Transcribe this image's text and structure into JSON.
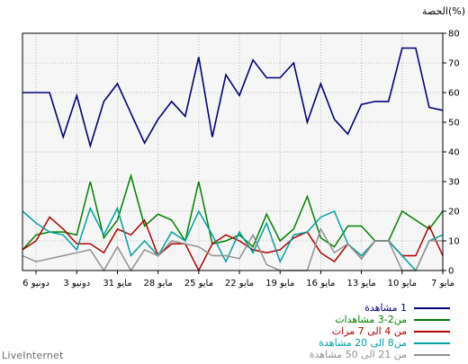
{
  "chart_data": {
    "type": "line",
    "ylabel": "الحصة(%)",
    "ylim": [
      0,
      80
    ],
    "yticks": [
      0,
      10,
      20,
      30,
      40,
      50,
      60,
      70,
      80
    ],
    "grid": true,
    "x_direction": "right-to-left",
    "x_tick_labels": [
      "7 مايو",
      "10 مايو",
      "13 مايو",
      "16 مايو",
      "19 مايو",
      "22 مايو",
      "25 مايو",
      "28 مايو",
      "31 مايو",
      "3 دونيو",
      "6 دونيو"
    ],
    "x_count": 32,
    "legend_position": "bottom-right",
    "series": [
      {
        "name": "1 مشاهدة",
        "color": "#00007b",
        "values": [
          54,
          55,
          75,
          75,
          57,
          57,
          56,
          46,
          51,
          63,
          50,
          70,
          65,
          65,
          71,
          59,
          66,
          45,
          72,
          52,
          57,
          51,
          43,
          53,
          63,
          57,
          42,
          59,
          45,
          60,
          60,
          60
        ]
      },
      {
        "name": "من2-3  مشاهدات",
        "color": "#008000",
        "values": [
          20,
          14,
          17,
          20,
          10,
          10,
          15,
          15,
          8,
          11,
          25,
          14,
          10,
          19,
          8,
          12,
          10,
          9,
          30,
          10,
          17,
          19,
          15,
          32,
          17,
          11,
          30,
          12,
          13,
          13,
          12,
          7
        ]
      },
      {
        "name": "من 4 الى 7 مرات",
        "color": "#b00000",
        "values": [
          5,
          15,
          5,
          5,
          10,
          10,
          4,
          9,
          3,
          6,
          13,
          11,
          7,
          6,
          7,
          10,
          12,
          9,
          0,
          9,
          9,
          5,
          17,
          12,
          14,
          6,
          9,
          9,
          14,
          18,
          10,
          7
        ]
      },
      {
        "name": "من8 الى 20 مشاهدة",
        "color": "#00a0a0",
        "values": [
          12,
          10,
          0,
          5,
          10,
          10,
          5,
          9,
          20,
          18,
          13,
          12,
          3,
          16,
          6,
          13,
          3,
          12,
          20,
          10,
          13,
          5,
          10,
          5,
          21,
          12,
          21,
          7,
          12,
          13,
          16,
          20
        ]
      },
      {
        "name": "من 21 الى 50 مشاهدة",
        "color": "#909090",
        "values": [
          10,
          10,
          0,
          0,
          10,
          10,
          4,
          9,
          6,
          14,
          0,
          0,
          0,
          2,
          12,
          4,
          5,
          5,
          8,
          9,
          10,
          5,
          7,
          0,
          8,
          0,
          7,
          6,
          5,
          4,
          3,
          5
        ]
      }
    ]
  },
  "brand": "LiveInternet"
}
